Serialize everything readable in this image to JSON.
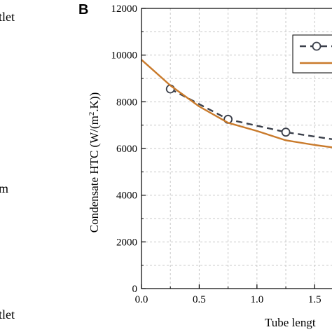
{
  "left_column_fragments": [
    "tlet",
    "m",
    "tlet"
  ],
  "panel_label": "B",
  "chart_data": {
    "type": "line",
    "xlabel": "Tube lengt",
    "ylabel_prefix": "Condensate HTC (W/(m",
    "ylabel_sup": "2",
    "ylabel_suffix": ".K))",
    "xlim": [
      0.0,
      1.65
    ],
    "ylim": [
      0,
      12000
    ],
    "x_ticks": [
      0.0,
      0.5,
      1.0,
      1.5
    ],
    "x_tick_labels": [
      "0.0",
      "0.5",
      "1.0",
      "1.5"
    ],
    "y_ticks": [
      0,
      2000,
      4000,
      6000,
      8000,
      10000,
      12000
    ],
    "y_tick_labels": [
      "0",
      "2000",
      "4000",
      "6000",
      "8000",
      "10000",
      "12000"
    ],
    "grid": true,
    "legend_position": "top-right",
    "series": [
      {
        "style": "dashed-circle-markers",
        "color": "#3a3f4a",
        "x": [
          0.25,
          0.75,
          1.25,
          1.65
        ],
        "y": [
          8550,
          7250,
          6700,
          6400
        ],
        "markers_x": [
          0.25,
          0.75,
          1.25
        ],
        "markers_y": [
          8550,
          7250,
          6700
        ]
      },
      {
        "style": "solid",
        "color": "#c97a2b",
        "x": [
          0.0,
          0.25,
          0.5,
          0.75,
          1.0,
          1.25,
          1.5,
          1.65
        ],
        "y": [
          9800,
          8700,
          7800,
          7100,
          6750,
          6350,
          6150,
          6050
        ]
      }
    ]
  }
}
